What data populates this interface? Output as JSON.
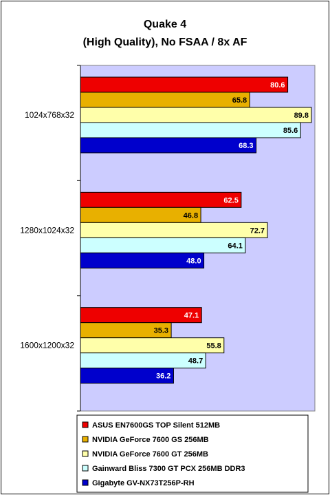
{
  "chart_data": {
    "type": "bar",
    "orientation": "horizontal",
    "title": "Quake 4",
    "subtitle": "(High Quality), No FSAA / 8x AF",
    "categories": [
      "1024x768x32",
      "1280x1024x32",
      "1600x1200x32"
    ],
    "xlim": [
      0,
      90
    ],
    "grid": false,
    "legend_position": "bottom",
    "plot_background": "#ccccff",
    "series": [
      {
        "name": "ASUS EN7600GS TOP Silent 512MB",
        "color": "#ee0000",
        "label_color": "#ffffff",
        "values": [
          80.6,
          62.5,
          47.1
        ]
      },
      {
        "name": "NVIDIA GeForce 7600 GS 256MB",
        "color": "#e8b000",
        "label_color": "#000000",
        "values": [
          65.8,
          46.8,
          35.3
        ]
      },
      {
        "name": "NVIDIA GeForce 7600 GT 256MB",
        "color": "#ffffaa",
        "label_color": "#000000",
        "values": [
          89.8,
          72.7,
          55.8
        ]
      },
      {
        "name": "Gainward Bliss 7300 GT PCX 256MB DDR3",
        "color": "#ccffff",
        "label_color": "#000000",
        "values": [
          85.6,
          64.1,
          48.7
        ]
      },
      {
        "name": "Gigabyte GV-NX73T256P-RH",
        "color": "#0000cc",
        "label_color": "#ffffff",
        "values": [
          68.3,
          48.0,
          36.2
        ]
      }
    ]
  }
}
